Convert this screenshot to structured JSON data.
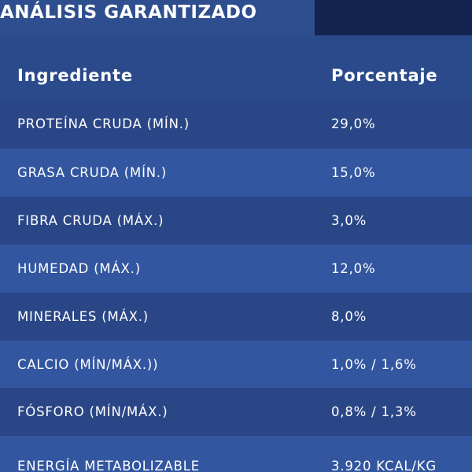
{
  "title": "ANÁLISIS GARANTIZADO",
  "table": {
    "headers": [
      "Ingrediente",
      "Porcentaje"
    ],
    "rows": [
      {
        "ingredient": "PROTEÍNA CRUDA (MÍN.)",
        "percentage": "29,0%"
      },
      {
        "ingredient": "GRASA CRUDA (MÍN.)",
        "percentage": "15,0%"
      },
      {
        "ingredient": "FIBRA CRUDA (MÁX.)",
        "percentage": "3,0%"
      },
      {
        "ingredient": "HUMEDAD (MÁX.)",
        "percentage": "12,0%"
      },
      {
        "ingredient": "MINERALES (MÁX.)",
        "percentage": "8,0%"
      },
      {
        "ingredient": "CALCIO (MÍN/MÁX.))",
        "percentage": "1,0% / 1,6%"
      },
      {
        "ingredient": "FÓSFORO (MÍN/MÁX.)",
        "percentage": "0,8% / 1,3%"
      },
      {
        "ingredient": "ENERGÍA METABOLIZABLE",
        "percentage": "3.920 KCAL/KG"
      }
    ]
  },
  "colors": {
    "background": "#2c4a8a",
    "band_dark": "#2a4686",
    "band_light": "#3256a0",
    "corner_block": "#142450",
    "text": "#ffffff"
  }
}
